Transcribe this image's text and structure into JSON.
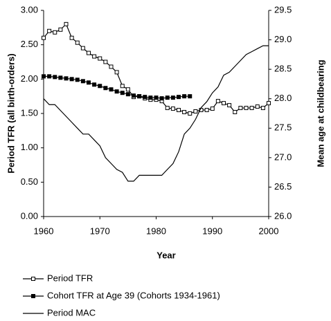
{
  "chart_data": {
    "type": "line",
    "x_label": "Year",
    "y_label": "Period TFR (all birth-orders)",
    "y2_label": "Mean age at childbearing",
    "x": [
      1960,
      1961,
      1962,
      1963,
      1964,
      1965,
      1966,
      1967,
      1968,
      1969,
      1970,
      1971,
      1972,
      1973,
      1974,
      1975,
      1976,
      1977,
      1978,
      1979,
      1980,
      1981,
      1982,
      1983,
      1984,
      1985,
      1986,
      1987,
      1988,
      1989,
      1990,
      1991,
      1992,
      1993,
      1994,
      1995,
      1996,
      1997,
      1998,
      1999,
      2000
    ],
    "series": [
      {
        "name": "Period TFR",
        "color": "#000000",
        "marker": "hollow-square",
        "values": [
          2.6,
          2.7,
          2.68,
          2.72,
          2.8,
          2.6,
          2.53,
          2.45,
          2.38,
          2.33,
          2.3,
          2.25,
          2.18,
          2.1,
          1.9,
          1.85,
          1.74,
          1.75,
          1.72,
          1.7,
          1.7,
          1.68,
          1.58,
          1.57,
          1.55,
          1.52,
          1.5,
          1.53,
          1.55,
          1.55,
          1.57,
          1.68,
          1.65,
          1.62,
          1.52,
          1.58,
          1.58,
          1.58,
          1.6,
          1.58,
          1.65
        ]
      },
      {
        "name": "Cohort TFR at Age 39 (Cohorts 1934-1961)",
        "color": "#000000",
        "marker": "filled-square",
        "values": [
          2.04,
          2.04,
          2.03,
          2.02,
          2.01,
          2.0,
          1.99,
          1.97,
          1.95,
          1.92,
          1.9,
          1.87,
          1.85,
          1.82,
          1.8,
          1.78,
          1.76,
          1.75,
          1.74,
          1.73,
          1.73,
          1.72,
          1.73,
          1.73,
          1.74,
          1.75,
          1.75,
          null,
          null,
          null,
          null,
          null,
          null,
          null,
          null,
          null,
          null,
          null,
          null,
          null,
          null
        ]
      },
      {
        "name": "Period MAC",
        "color": "#000000",
        "marker": "none",
        "axis": "y2",
        "values": [
          28.0,
          27.9,
          27.9,
          27.8,
          27.7,
          27.6,
          27.5,
          27.4,
          27.4,
          27.3,
          27.2,
          27.0,
          26.9,
          26.8,
          26.75,
          26.6,
          26.6,
          26.7,
          26.7,
          26.7,
          26.7,
          26.7,
          26.8,
          26.9,
          27.1,
          27.4,
          27.5,
          27.65,
          27.85,
          27.95,
          28.1,
          28.2,
          28.4,
          28.45,
          28.55,
          28.65,
          28.75,
          28.8,
          28.85,
          28.9,
          28.9
        ]
      }
    ],
    "xlim": [
      1960,
      2000
    ],
    "xticks": [
      1960,
      1970,
      1980,
      1990,
      2000
    ],
    "ylim": [
      0,
      3
    ],
    "yticks": [
      {
        "value": 0,
        "label": "0.00"
      },
      {
        "value": 0.5,
        "label": "0.50"
      },
      {
        "value": 1,
        "label": "1.00"
      },
      {
        "value": 1.5,
        "label": "1.50"
      },
      {
        "value": 2,
        "label": "2.00"
      },
      {
        "value": 2.5,
        "label": "2.50"
      },
      {
        "value": 3,
        "label": "3.00"
      }
    ],
    "y2lim": [
      26,
      29.5
    ],
    "y2ticks": [
      {
        "value": 26,
        "label": "26.0"
      },
      26.5,
      {
        "value": 27,
        "label": "27.0"
      },
      27.5,
      {
        "value": 28,
        "label": "28.0"
      },
      28.5,
      {
        "value": 29,
        "label": "29.0"
      },
      29.5
    ],
    "grid": false,
    "legend": "bottom"
  }
}
